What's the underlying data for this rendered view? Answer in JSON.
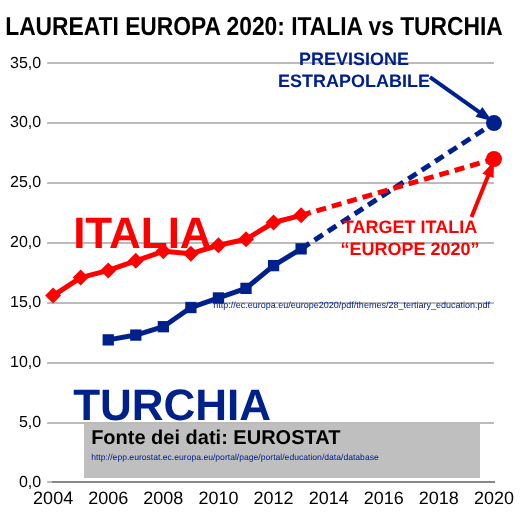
{
  "chart_data": {
    "type": "line",
    "title": "LAUREATI EUROPA 2020: ITALIA vs TURCHIA",
    "xlim": [
      2004,
      2020
    ],
    "xticks": [
      2004,
      2006,
      2008,
      2010,
      2012,
      2014,
      2016,
      2018,
      2020
    ],
    "ylim": [
      0,
      35
    ],
    "yticks": [
      {
        "value": 0,
        "label": "0,0"
      },
      {
        "value": 5,
        "label": "5,0"
      },
      {
        "value": 10,
        "label": "10,0"
      },
      {
        "value": 15,
        "label": "15,0"
      },
      {
        "value": 20,
        "label": "20,0"
      },
      {
        "value": 25,
        "label": "25,0"
      },
      {
        "value": 30,
        "label": "30,0"
      },
      {
        "value": 35,
        "label": "35,0"
      }
    ],
    "grid": "y",
    "legend": false,
    "series": [
      {
        "name": "ITALIA",
        "color": "#ff0000",
        "marker": "diamond",
        "line_style": "solid",
        "x": [
          2004,
          2005,
          2006,
          2007,
          2008,
          2009,
          2010,
          2011,
          2012,
          2013
        ],
        "values": [
          15.6,
          17.1,
          17.7,
          18.5,
          19.3,
          19.1,
          19.8,
          20.3,
          21.7,
          22.3
        ]
      },
      {
        "name": "TURCHIA",
        "color": "#00208c",
        "marker": "square",
        "line_style": "solid",
        "x": [
          2006,
          2007,
          2008,
          2009,
          2010,
          2011,
          2012,
          2013
        ],
        "values": [
          11.9,
          12.3,
          13.0,
          14.6,
          15.4,
          16.2,
          18.1,
          19.5
        ]
      },
      {
        "color": "#ff0000",
        "marker": "circle",
        "line_style": "dashed",
        "x": [
          2013,
          2020
        ],
        "values": [
          22.3,
          27
        ]
      },
      {
        "color": "#00208c",
        "marker": "circle",
        "line_style": "dashed",
        "x": [
          2013,
          2020
        ],
        "values": [
          19.5,
          30
        ]
      }
    ],
    "annotations": [
      {
        "text": "PREVISIONE ESTRAPOLABILE",
        "x": 2020,
        "y": 30
      },
      {
        "text": "TARGET ITALIA “EUROPE 2020”",
        "x": 2020,
        "y": 27
      },
      "http://ec.europa.eu/europe2020/pdf/themes/28_tertiary_education.pdf",
      "Fonte dei dati: EUROSTAT",
      "http://epp.eurostat.ec.europa.eu/portal/page/portal/education/data/database"
    ]
  }
}
